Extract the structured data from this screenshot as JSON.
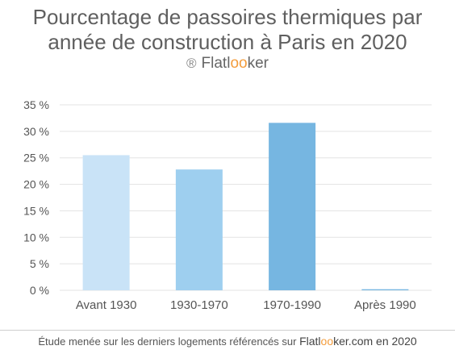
{
  "header": {
    "title_line1": "Pourcentage de passoires thermiques par",
    "title_line2": "année de construction à Paris en 2020",
    "brand_symbol": "®",
    "brand_prefix": "Flatl",
    "brand_oo": "oo",
    "brand_suffix": "ker"
  },
  "footer": {
    "text": "Étude menée sur les derniers logements référencés sur",
    "brand_prefix": "Flatl",
    "brand_oo": "oo",
    "brand_suffix": "ker.com en 2020"
  },
  "colors": {
    "accent_oo": "#f39c3c",
    "grid": "#e3e3e3"
  },
  "chart_data": {
    "type": "bar",
    "title": "Pourcentage de passoires thermiques par année de construction à Paris en 2020",
    "xlabel": "",
    "ylabel": "",
    "categories": [
      "Avant 1930",
      "1930-1970",
      "1970-1990",
      "Après 1990"
    ],
    "values": [
      25.5,
      22.8,
      31.6,
      0.2
    ],
    "bar_colors": [
      "#c9e3f7",
      "#9ecfef",
      "#76b6e1",
      "#76b6e1"
    ],
    "ylim": [
      0,
      35
    ],
    "yticks": [
      0,
      5,
      10,
      15,
      20,
      25,
      30,
      35
    ],
    "ytick_labels": [
      "0 %",
      "5 %",
      "10 %",
      "15 %",
      "20 %",
      "25 %",
      "30 %",
      "35 %"
    ],
    "grid": true,
    "legend": "none"
  }
}
